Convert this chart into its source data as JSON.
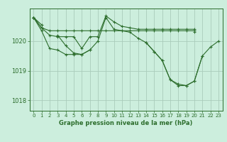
{
  "title": "Graphe pression niveau de la mer (hPa)",
  "bg_color": "#cceedd",
  "grid_color": "#aaccbb",
  "line_color": "#2d6e2d",
  "ylim": [
    1017.65,
    1021.1
  ],
  "xlim": [
    -0.5,
    23.5
  ],
  "yticks": [
    1018,
    1019,
    1020
  ],
  "xticks": [
    0,
    1,
    2,
    3,
    4,
    5,
    6,
    7,
    8,
    9,
    10,
    11,
    12,
    13,
    14,
    15,
    16,
    17,
    18,
    19,
    20,
    21,
    22,
    23
  ],
  "series": [
    [
      1020.8,
      1020.55,
      null,
      null,
      null,
      null,
      null,
      null,
      null,
      null,
      null,
      null,
      null,
      null,
      null,
      null,
      null,
      null,
      null,
      null,
      1020.3,
      null,
      null,
      null
    ],
    [
      1020.8,
      1020.45,
      1020.35,
      1020.35,
      1020.35,
      1020.35,
      1020.35,
      1020.35,
      1020.35,
      1020.35,
      1020.35,
      1020.35,
      1020.35,
      1020.35,
      1020.35,
      1020.35,
      1020.35,
      1020.35,
      1020.35,
      1020.35,
      1020.35,
      null,
      null,
      null
    ],
    [
      1020.8,
      1020.45,
      1020.2,
      1020.15,
      1020.15,
      1020.15,
      1019.75,
      1020.15,
      1020.15,
      1020.85,
      1020.65,
      1020.5,
      1020.45,
      1020.4,
      1020.4,
      1020.4,
      1020.4,
      1020.4,
      1020.4,
      1020.4,
      1020.4,
      null,
      null,
      null
    ],
    [
      1020.8,
      1020.35,
      1019.75,
      1019.7,
      1019.55,
      1019.55,
      1019.55,
      1019.7,
      1020.0,
      1020.8,
      1020.4,
      1020.35,
      1020.3,
      1020.1,
      1019.95,
      1019.65,
      1019.35,
      1018.7,
      1018.55,
      1018.5,
      1018.65,
      1019.5,
      1019.8,
      1020.0
    ],
    [
      1020.8,
      null,
      null,
      1020.2,
      1019.85,
      1019.6,
      1019.55,
      1019.7,
      null,
      null,
      null,
      null,
      null,
      null,
      1019.95,
      1019.65,
      1019.35,
      1018.7,
      1018.5,
      1018.5,
      1018.65,
      1019.5,
      null,
      null
    ]
  ]
}
